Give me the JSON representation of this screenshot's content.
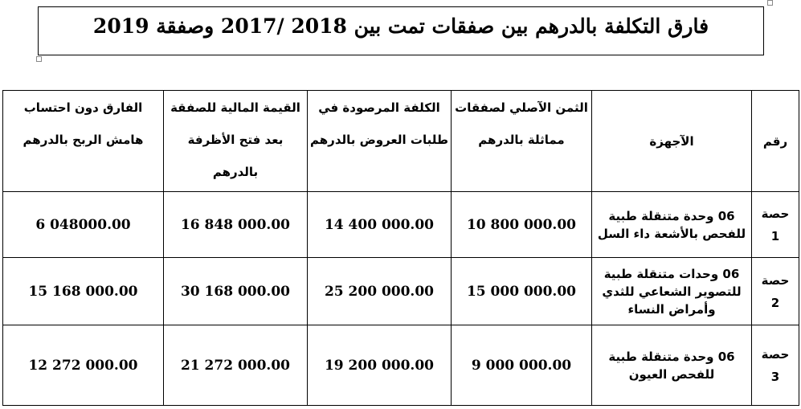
{
  "title": "فارق التكلفة بالدرهم بين صفقات تمت بين 2018 /2017 وصفقة 2019",
  "headers": [
    "رقم",
    "الآجهزة",
    "الثمن الآصلي لصفقات مماثلة بالدرهم",
    "الكلفة المرصودة في طلبات العروض بالدرهم",
    "القيمة المالية للصفقة بعد فتح الأظرفة بالدرهم",
    "الفارق دون احتساب هامش الربح بالدرهم"
  ],
  "rows": [
    {
      "lot": "حصة",
      "num": "1",
      "device": "06 وحدة متنقلة طبية للفحص بالأشعة داء السل",
      "original": "10 800 000.00",
      "budgeted": "14 400 000.00",
      "awarded": "16 848 000.00",
      "difference": "6 048000.00"
    },
    {
      "lot": "حصة",
      "num": "2",
      "device": "06 وحدات متنقلة طبية للتصوير الشعاعي للثدي وأمراض النساء",
      "original": "15 000 000.00",
      "budgeted": "25 200 000.00",
      "awarded": "30 168 000.00",
      "difference": "15 168 000.00"
    },
    {
      "lot": "حصة",
      "num": "3",
      "device": "06 وحدة متنقلة طبية للفحص العيون",
      "original": "9 000 000.00",
      "budgeted": "19 200 000.00",
      "awarded": "21 272 000.00",
      "difference": "12 272 000.00"
    }
  ]
}
